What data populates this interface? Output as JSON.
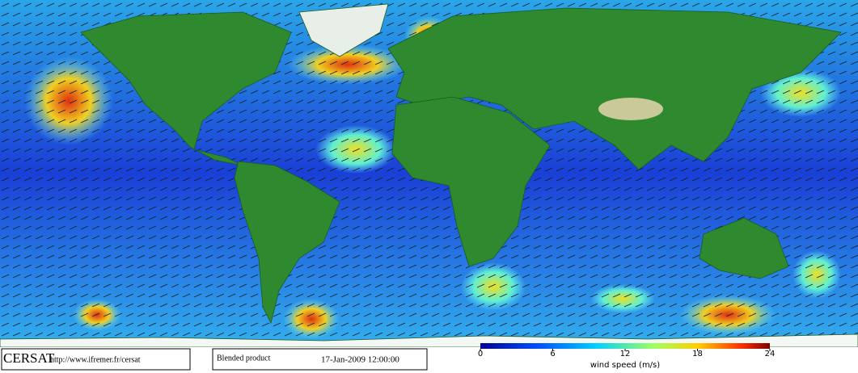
{
  "footer": {
    "logo": "CERSAT",
    "url": "http://www.ifremer.fr/cersat",
    "product": "Blended product",
    "date": "17-Jan-2009 12:00:00"
  },
  "colorbar": {
    "label": "wind speed (m/s)",
    "range": [
      0,
      24
    ],
    "ticks": [
      0,
      6,
      12,
      18,
      24
    ]
  }
}
